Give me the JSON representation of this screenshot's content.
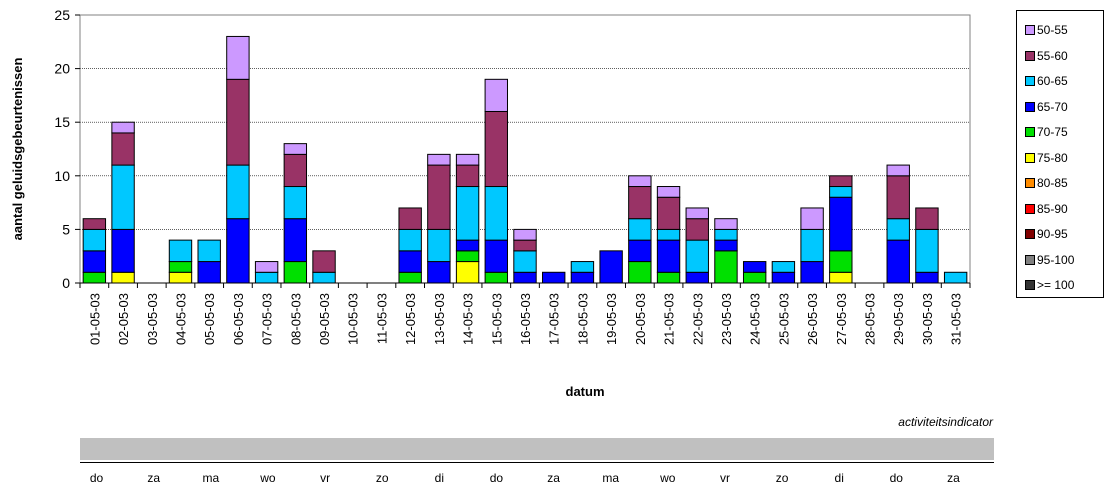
{
  "chart_data": {
    "type": "bar",
    "stacked": true,
    "xlabel": "datum",
    "ylabel": "aantal geluidsgebeurtenissen",
    "ylim": [
      0,
      25
    ],
    "yticks": [
      0,
      5,
      10,
      15,
      20,
      25
    ],
    "grid": true,
    "legend_position": "right",
    "categories": [
      "01-05-03",
      "02-05-03",
      "03-05-03",
      "04-05-03",
      "05-05-03",
      "06-05-03",
      "07-05-03",
      "08-05-03",
      "09-05-03",
      "10-05-03",
      "11-05-03",
      "12-05-03",
      "13-05-03",
      "14-05-03",
      "15-05-03",
      "16-05-03",
      "17-05-03",
      "18-05-03",
      "19-05-03",
      "20-05-03",
      "21-05-03",
      "22-05-03",
      "23-05-03",
      "24-05-03",
      "25-05-03",
      "26-05-03",
      "27-05-03",
      "28-05-03",
      "29-05-03",
      "30-05-03",
      "31-05-03"
    ],
    "series": [
      {
        "name": ">= 100",
        "color": "#333333",
        "values": [
          0,
          0,
          0,
          0,
          0,
          0,
          0,
          0,
          0,
          0,
          0,
          0,
          0,
          0,
          0,
          0,
          0,
          0,
          0,
          0,
          0,
          0,
          0,
          0,
          0,
          0,
          0,
          0,
          0,
          0,
          0
        ]
      },
      {
        "name": "95-100",
        "color": "#808080",
        "values": [
          0,
          0,
          0,
          0,
          0,
          0,
          0,
          0,
          0,
          0,
          0,
          0,
          0,
          0,
          0,
          0,
          0,
          0,
          0,
          0,
          0,
          0,
          0,
          0,
          0,
          0,
          0,
          0,
          0,
          0,
          0
        ]
      },
      {
        "name": "90-95",
        "color": "#800000",
        "values": [
          0,
          0,
          0,
          0,
          0,
          0,
          0,
          0,
          0,
          0,
          0,
          0,
          0,
          0,
          0,
          0,
          0,
          0,
          0,
          0,
          0,
          0,
          0,
          0,
          0,
          0,
          0,
          0,
          0,
          0,
          0
        ]
      },
      {
        "name": "85-90",
        "color": "#ff0000",
        "values": [
          0,
          0,
          0,
          0,
          0,
          0,
          0,
          0,
          0,
          0,
          0,
          0,
          0,
          0,
          0,
          0,
          0,
          0,
          0,
          0,
          0,
          0,
          0,
          0,
          0,
          0,
          0,
          0,
          0,
          0,
          0
        ]
      },
      {
        "name": "80-85",
        "color": "#ff8c00",
        "values": [
          0,
          0,
          0,
          0,
          0,
          0,
          0,
          0,
          0,
          0,
          0,
          0,
          0,
          0,
          0,
          0,
          0,
          0,
          0,
          0,
          0,
          0,
          0,
          0,
          0,
          0,
          0,
          0,
          0,
          0,
          0
        ]
      },
      {
        "name": "75-80",
        "color": "#ffff00",
        "values": [
          0,
          1,
          0,
          1,
          0,
          0,
          0,
          0,
          0,
          0,
          0,
          0,
          0,
          2,
          0,
          0,
          0,
          0,
          0,
          0,
          0,
          0,
          0,
          0,
          0,
          0,
          1,
          0,
          0,
          0,
          0
        ]
      },
      {
        "name": "70-75",
        "color": "#00e000",
        "values": [
          1,
          0,
          0,
          1,
          0,
          0,
          0,
          2,
          0,
          0,
          0,
          1,
          0,
          1,
          1,
          0,
          0,
          0,
          0,
          2,
          1,
          0,
          3,
          1,
          0,
          0,
          2,
          0,
          0,
          0,
          0
        ]
      },
      {
        "name": "65-70",
        "color": "#0000ff",
        "values": [
          2,
          4,
          0,
          0,
          2,
          6,
          0,
          4,
          0,
          0,
          0,
          2,
          2,
          1,
          3,
          1,
          1,
          1,
          3,
          2,
          3,
          1,
          1,
          1,
          1,
          2,
          5,
          0,
          4,
          1,
          0
        ]
      },
      {
        "name": "60-65",
        "color": "#00c8ff",
        "values": [
          2,
          6,
          0,
          2,
          2,
          5,
          1,
          3,
          1,
          0,
          0,
          2,
          3,
          5,
          5,
          2,
          0,
          1,
          0,
          2,
          1,
          3,
          1,
          0,
          1,
          3,
          1,
          0,
          2,
          4,
          1
        ]
      },
      {
        "name": "55-60",
        "color": "#993366",
        "values": [
          1,
          3,
          0,
          0,
          0,
          8,
          0,
          3,
          2,
          0,
          0,
          2,
          6,
          2,
          7,
          1,
          0,
          0,
          0,
          3,
          3,
          2,
          0,
          0,
          0,
          0,
          1,
          0,
          4,
          2,
          0
        ]
      },
      {
        "name": "50-55",
        "color": "#cc99ff",
        "values": [
          0,
          1,
          0,
          0,
          0,
          4,
          1,
          1,
          0,
          0,
          0,
          0,
          1,
          1,
          3,
          1,
          0,
          0,
          0,
          1,
          1,
          1,
          1,
          0,
          0,
          2,
          0,
          0,
          1,
          0,
          0
        ]
      }
    ],
    "legend_order": [
      "50-55",
      "55-60",
      "60-65",
      "65-70",
      "70-75",
      "75-80",
      "80-85",
      "85-90",
      "90-95",
      "95-100",
      ">= 100"
    ]
  },
  "activity": {
    "label": "activiteitsindicator",
    "days": [
      "do",
      "za",
      "ma",
      "wo",
      "vr",
      "zo",
      "di",
      "do",
      "za",
      "ma",
      "wo",
      "vr",
      "zo",
      "di",
      "do",
      "za"
    ]
  }
}
